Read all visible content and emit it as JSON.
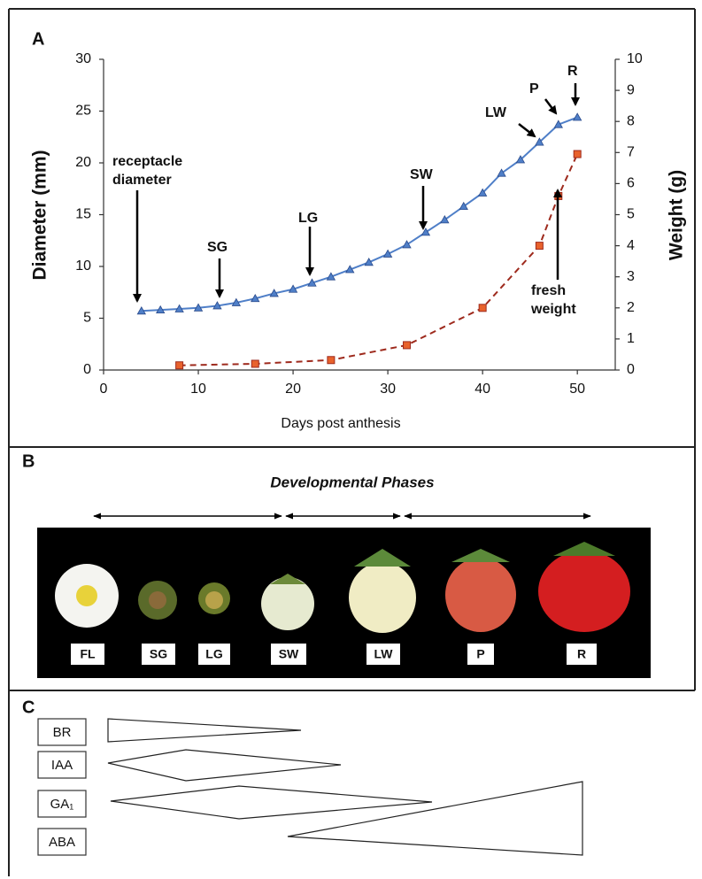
{
  "chart_data": {
    "type": "line",
    "panel_label": "A",
    "x_label": "Days post anthesis",
    "y_label": "Diameter (mm)",
    "y2_label": "Weight (g)",
    "xlim": [
      0,
      54
    ],
    "xticks": [
      0,
      10,
      20,
      30,
      40,
      50
    ],
    "ylim": [
      0,
      30
    ],
    "yticks": [
      0,
      5,
      10,
      15,
      20,
      25,
      30
    ],
    "y2lim": [
      0,
      10
    ],
    "y2ticks": [
      0,
      1,
      2,
      3,
      4,
      5,
      6,
      7,
      8,
      9,
      10
    ],
    "series": [
      {
        "name": "receptacle diameter",
        "color": "#4f7fc8",
        "marker": "triangle",
        "x": [
          4,
          6,
          8,
          10,
          12,
          14,
          16,
          18,
          20,
          22,
          24,
          26,
          28,
          30,
          32,
          34,
          36,
          38,
          40,
          42,
          44,
          46,
          48,
          50
        ],
        "values": [
          5.7,
          5.8,
          5.9,
          6.0,
          6.2,
          6.5,
          6.9,
          7.4,
          7.8,
          8.4,
          9.0,
          9.7,
          10.4,
          11.2,
          12.1,
          13.3,
          14.5,
          15.8,
          17.1,
          19.0,
          20.3,
          22.0,
          23.7,
          24.4
        ]
      },
      {
        "name": "fresh weight",
        "color": "#9e2a1d",
        "marker_color": "#e8622c",
        "marker": "square",
        "dashed": true,
        "axis": "y2",
        "x": [
          8,
          16,
          24,
          32,
          40,
          46,
          48,
          50
        ],
        "values": [
          0.15,
          0.2,
          0.32,
          0.8,
          2.0,
          4.0,
          5.6,
          6.95
        ]
      }
    ],
    "annotations": [
      "receptacle diameter",
      "SG",
      "LG",
      "SW",
      "LW",
      "P",
      "R",
      "fresh weight"
    ]
  },
  "panel_b": {
    "label": "B",
    "title": "Developmental Phases",
    "stages": [
      "FL",
      "SG",
      "LG",
      "SW",
      "LW",
      "P",
      "R"
    ]
  },
  "panel_c": {
    "label": "C",
    "hormones": [
      "BR",
      "IAA",
      "GA₁",
      "ABA"
    ]
  }
}
